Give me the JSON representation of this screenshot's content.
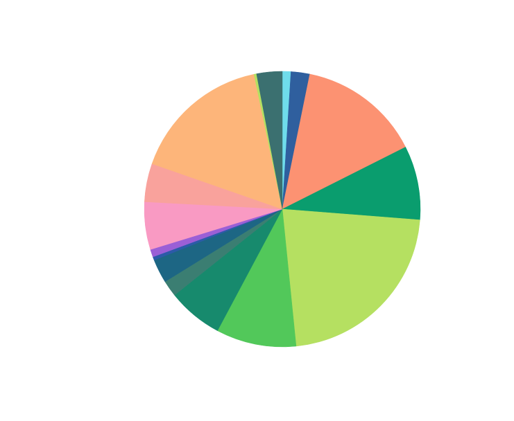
{
  "chart_data": {
    "type": "pie",
    "values": [
      1.0,
      2.2,
      14.4,
      8.7,
      22.2,
      9.4,
      6.5,
      1.9,
      2.8,
      0.4,
      0.9,
      5.6,
      4.5,
      16.4,
      0.3,
      3.0
    ],
    "colors": [
      "#6fdceb",
      "#2f5f9e",
      "#fc9272",
      "#0a9d6e",
      "#b5e061",
      "#52c85a",
      "#178a6d",
      "#3b7e72",
      "#1d6684",
      "#2c5aa8",
      "#9b5fd6",
      "#f99ac3",
      "#f9a29c",
      "#fdb57a",
      "#b5e061",
      "#3b7070"
    ]
  }
}
